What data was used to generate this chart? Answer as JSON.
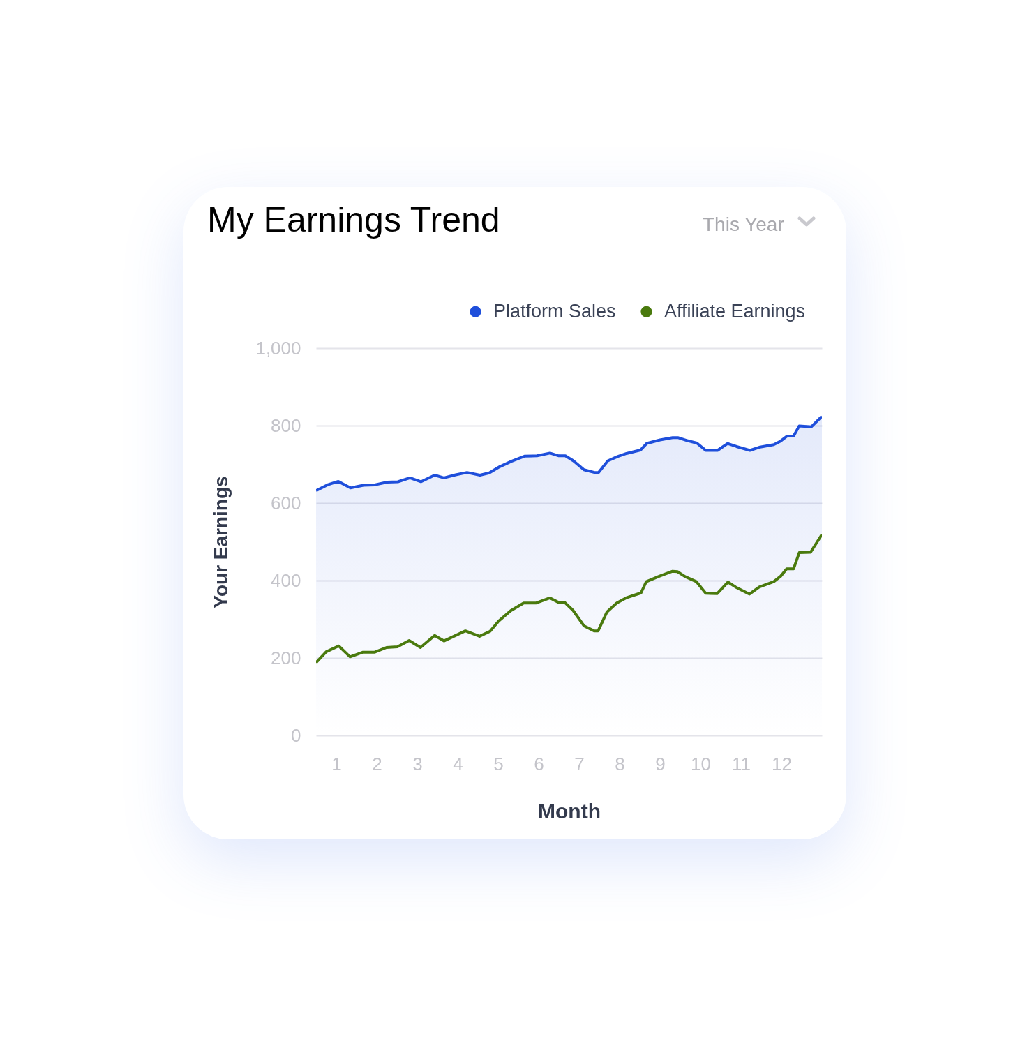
{
  "chart_data": {
    "type": "line",
    "title": "My Earnings Trend",
    "xlabel": "Month",
    "ylabel": "Your Earnings",
    "annotations": [
      "This Year"
    ],
    "xlim": [
      0.5,
      13
    ],
    "xticks": [
      1,
      2,
      3,
      4,
      5,
      6,
      7,
      8,
      9,
      10,
      11,
      12
    ],
    "ylim": [
      0,
      1000
    ],
    "yticks": [
      0,
      200,
      400,
      600,
      800,
      {
        "value": 1000,
        "label": "1,000"
      }
    ],
    "grid": "y",
    "legend": "top right",
    "series": [
      {
        "name": "Platform Sales",
        "type": "area",
        "color": "#1f4fdb",
        "x": [
          0.5,
          0.78,
          1.05,
          1.35,
          1.67,
          1.95,
          2.26,
          2.52,
          2.82,
          3.09,
          3.43,
          3.66,
          3.95,
          4.23,
          4.55,
          4.78,
          5.04,
          5.33,
          5.65,
          5.96,
          6.28,
          6.5,
          6.66,
          6.86,
          7.12,
          7.38,
          7.48,
          7.71,
          7.95,
          8.17,
          8.52,
          8.67,
          9.0,
          9.31,
          9.44,
          9.65,
          9.91,
          10.13,
          10.42,
          10.67,
          10.89,
          11.22,
          11.45,
          11.81,
          11.98,
          12.14,
          12.3,
          12.44,
          12.74,
          13
        ],
        "values": [
          632,
          647,
          656,
          639,
          646,
          647,
          654,
          655,
          665,
          655,
          672,
          665,
          673,
          679,
          672,
          678,
          694,
          708,
          721,
          722,
          729,
          722,
          722,
          709,
          686,
          679,
          679,
          709,
          720,
          728,
          737,
          754,
          763,
          769,
          769,
          762,
          755,
          736,
          736,
          754,
          746,
          736,
          744,
          751,
          760,
          773,
          773,
          799,
          797,
          824
        ]
      },
      {
        "name": "Affiliate Earnings",
        "color": "#4a7a0e",
        "x": [
          0.5,
          0.75,
          1.06,
          1.34,
          1.66,
          1.95,
          2.24,
          2.51,
          2.8,
          3.08,
          3.43,
          3.66,
          4.19,
          4.54,
          4.8,
          5.01,
          5.31,
          5.63,
          5.94,
          6.28,
          6.5,
          6.64,
          6.85,
          7.12,
          7.37,
          7.47,
          7.69,
          7.93,
          8.16,
          8.53,
          8.66,
          8.98,
          9.31,
          9.43,
          9.62,
          9.9,
          10.13,
          10.41,
          10.68,
          10.87,
          11.21,
          11.45,
          11.81,
          11.98,
          12.13,
          12.3,
          12.44,
          12.72,
          13
        ],
        "values": [
          188,
          216,
          231,
          203,
          215,
          215,
          227,
          229,
          245,
          227,
          258,
          244,
          270,
          256,
          269,
          295,
          322,
          342,
          342,
          355,
          343,
          344,
          323,
          283,
          270,
          270,
          319,
          342,
          355,
          368,
          397,
          411,
          424,
          423,
          410,
          397,
          367,
          366,
          396,
          383,
          365,
          383,
          397,
          411,
          430,
          430,
          472,
          473,
          519
        ]
      }
    ]
  }
}
